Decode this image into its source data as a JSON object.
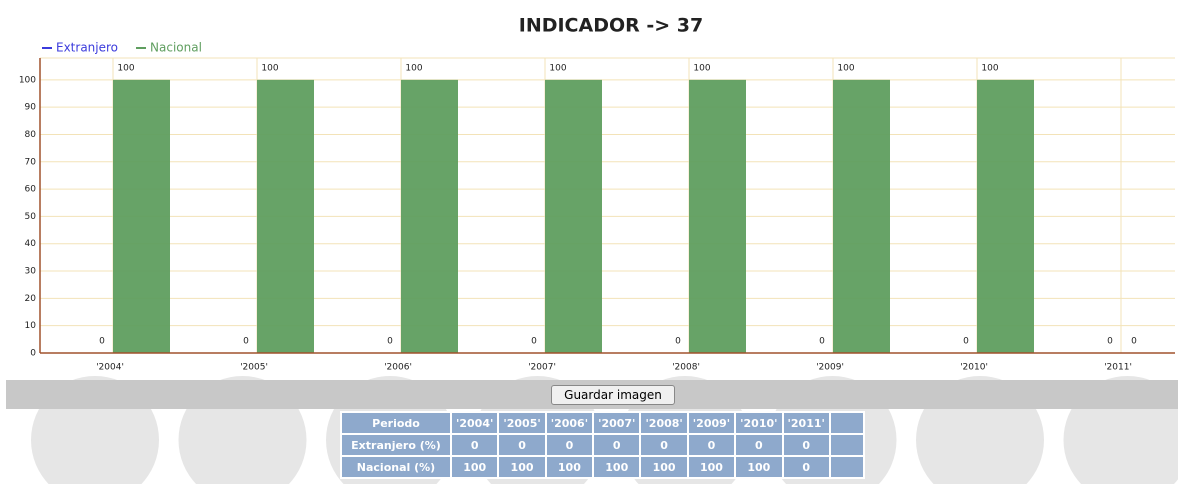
{
  "chart_data": {
    "type": "bar",
    "title": "INDICADOR -> 37",
    "categories": [
      "'2004'",
      "'2005'",
      "'2006'",
      "'2007'",
      "'2008'",
      "'2009'",
      "'2010'",
      "'2011'"
    ],
    "series": [
      {
        "name": "Extranjero",
        "color": "#3b3bdc",
        "values": [
          0,
          0,
          0,
          0,
          0,
          0,
          0,
          0
        ]
      },
      {
        "name": "Nacional",
        "color": "#5f9e5f",
        "values": [
          100,
          100,
          100,
          100,
          100,
          100,
          100,
          0
        ]
      }
    ],
    "ylim": [
      0,
      108
    ],
    "yticks": [
      0,
      10,
      20,
      30,
      40,
      50,
      60,
      70,
      80,
      90,
      100
    ],
    "grid": true,
    "legend": "top-left"
  },
  "button": "Guardar imagen",
  "table": {
    "header": [
      "Periodo",
      "'2004'",
      "'2005'",
      "'2006'",
      "'2007'",
      "'2008'",
      "'2009'",
      "'2010'",
      "'2011'"
    ],
    "rows": [
      [
        "Extranjero (%)",
        0,
        0,
        0,
        0,
        0,
        0,
        0,
        0
      ],
      [
        "Nacional (%)",
        100,
        100,
        100,
        100,
        100,
        100,
        100,
        0
      ]
    ]
  }
}
